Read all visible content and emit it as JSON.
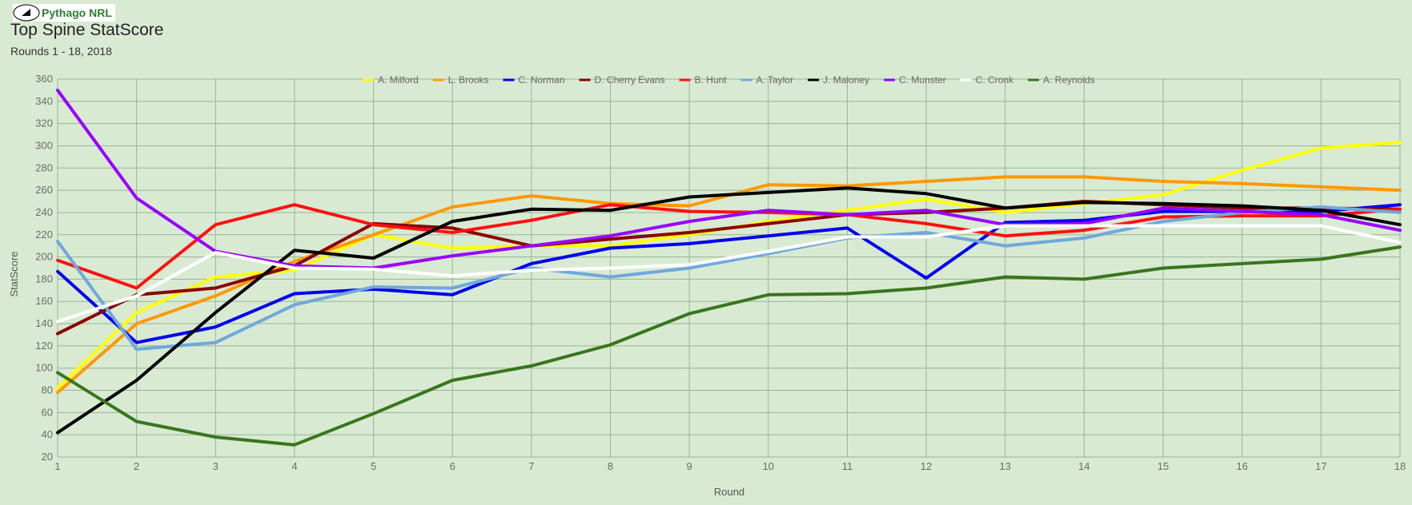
{
  "header": {
    "logo_text": "Pythago NRL",
    "title": "Top Spine StatScore",
    "subtitle": "Rounds 1 - 18, 2018"
  },
  "chart_data": {
    "type": "line",
    "title": "Top Spine StatScore",
    "subtitle": "Rounds 1 - 18, 2018",
    "xlabel": "Round",
    "ylabel": "StatScore",
    "x": [
      1,
      2,
      3,
      4,
      5,
      6,
      7,
      8,
      9,
      10,
      11,
      12,
      13,
      14,
      15,
      16,
      17,
      18
    ],
    "xlim": [
      1,
      18
    ],
    "ylim": [
      20,
      360
    ],
    "yticks": [
      20,
      40,
      60,
      80,
      100,
      120,
      140,
      160,
      180,
      200,
      220,
      240,
      260,
      280,
      300,
      320,
      340,
      360
    ],
    "grid": true,
    "legend_position": "top",
    "series": [
      {
        "name": "A. Milford",
        "color": "#ffff00",
        "values": [
          82,
          150,
          182,
          188,
          220,
          208,
          210,
          210,
          220,
          232,
          242,
          252,
          240,
          248,
          256,
          278,
          298,
          303
        ]
      },
      {
        "name": "L. Brooks",
        "color": "#ff9900",
        "values": [
          78,
          140,
          165,
          196,
          220,
          245,
          255,
          248,
          246,
          265,
          264,
          268,
          272,
          272,
          268,
          266,
          263,
          260
        ]
      },
      {
        "name": "C. Norman",
        "color": "#0000ee",
        "values": [
          187,
          123,
          137,
          167,
          171,
          166,
          194,
          208,
          212,
          219,
          226,
          181,
          231,
          233,
          241,
          241,
          241,
          247
        ]
      },
      {
        "name": "D. Cherry Evans",
        "color": "#8b0000",
        "values": [
          131,
          166,
          172,
          192,
          230,
          226,
          210,
          216,
          222,
          230,
          238,
          240,
          244,
          250,
          247,
          244,
          244,
          243
        ]
      },
      {
        "name": "B. Hunt",
        "color": "#ff1111",
        "values": [
          197,
          172,
          229,
          247,
          229,
          222,
          233,
          247,
          241,
          240,
          238,
          230,
          219,
          224,
          236,
          237,
          237,
          243
        ]
      },
      {
        "name": "A. Taylor",
        "color": "#6fa8dc",
        "values": [
          214,
          117,
          123,
          157,
          173,
          172,
          190,
          182,
          190,
          203,
          217,
          222,
          210,
          217,
          232,
          240,
          245,
          240
        ]
      },
      {
        "name": "J. Maloney",
        "color": "#000000",
        "values": [
          42,
          89,
          150,
          206,
          199,
          232,
          243,
          242,
          254,
          258,
          262,
          257,
          244,
          249,
          248,
          246,
          242,
          229
        ]
      },
      {
        "name": "C. Munster",
        "color": "#9900ff",
        "values": [
          350,
          253,
          205,
          192,
          190,
          201,
          210,
          219,
          232,
          242,
          238,
          242,
          229,
          230,
          244,
          241,
          238,
          224
        ]
      },
      {
        "name": "C. Cronk",
        "color": "#ffffff",
        "values": [
          142,
          165,
          204,
          190,
          189,
          183,
          188,
          190,
          193,
          205,
          218,
          218,
          228,
          228,
          228,
          228,
          228,
          213
        ]
      },
      {
        "name": "A. Reynolds",
        "color": "#38761d",
        "values": [
          96,
          52,
          38,
          31,
          59,
          89,
          102,
          121,
          149,
          166,
          167,
          172,
          182,
          180,
          190,
          194,
          198,
          209
        ]
      }
    ]
  }
}
